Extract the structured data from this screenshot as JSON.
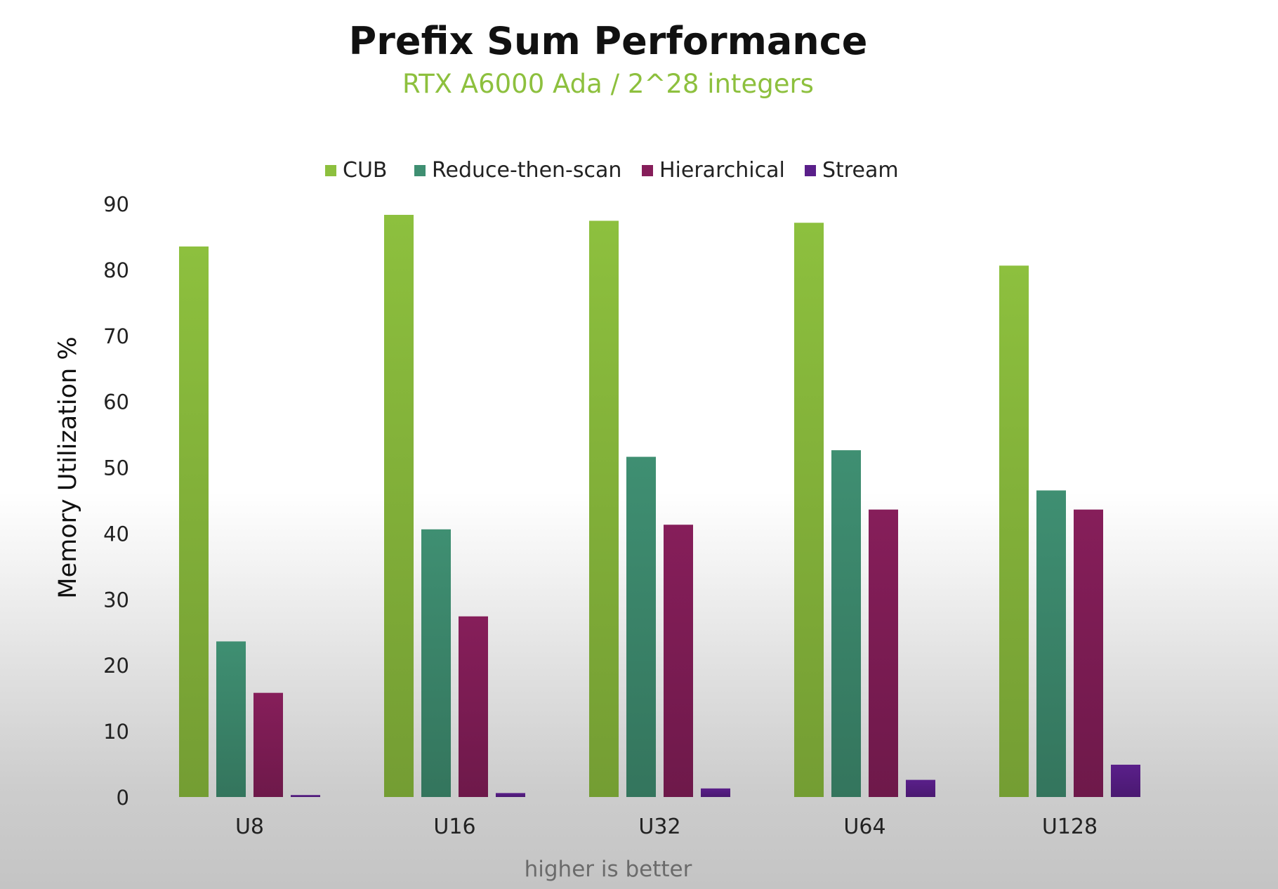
{
  "chart_data": {
    "type": "bar",
    "title": "Prefix Sum Performance",
    "subtitle": "RTX A6000 Ada / 2^28 integers",
    "xlabel": "",
    "ylabel": "Memory Utilization %",
    "footnote": "higher is better",
    "ylim": [
      0,
      90
    ],
    "yticks": [
      "0",
      "10",
      "20",
      "30",
      "40",
      "50",
      "60",
      "70",
      "80",
      "90"
    ],
    "grid": false,
    "legend_position": "top-center",
    "categories": [
      "U8",
      "U16",
      "U32",
      "U64",
      "U128"
    ],
    "series": [
      {
        "name": "CUB",
        "color": "#8dc03e",
        "values": [
          83.5,
          88.3,
          87.4,
          87.1,
          80.6
        ]
      },
      {
        "name": "Reduce-then-scan",
        "color": "#3f8f72",
        "values": [
          23.6,
          40.6,
          51.6,
          52.6,
          46.5
        ]
      },
      {
        "name": "Hierarchical",
        "color": "#861e5a",
        "values": [
          15.8,
          27.4,
          41.3,
          43.6,
          43.6
        ]
      },
      {
        "name": "Stream",
        "color": "#5a1f8a",
        "values": [
          0.3,
          0.6,
          1.3,
          2.6,
          4.9
        ]
      }
    ]
  }
}
